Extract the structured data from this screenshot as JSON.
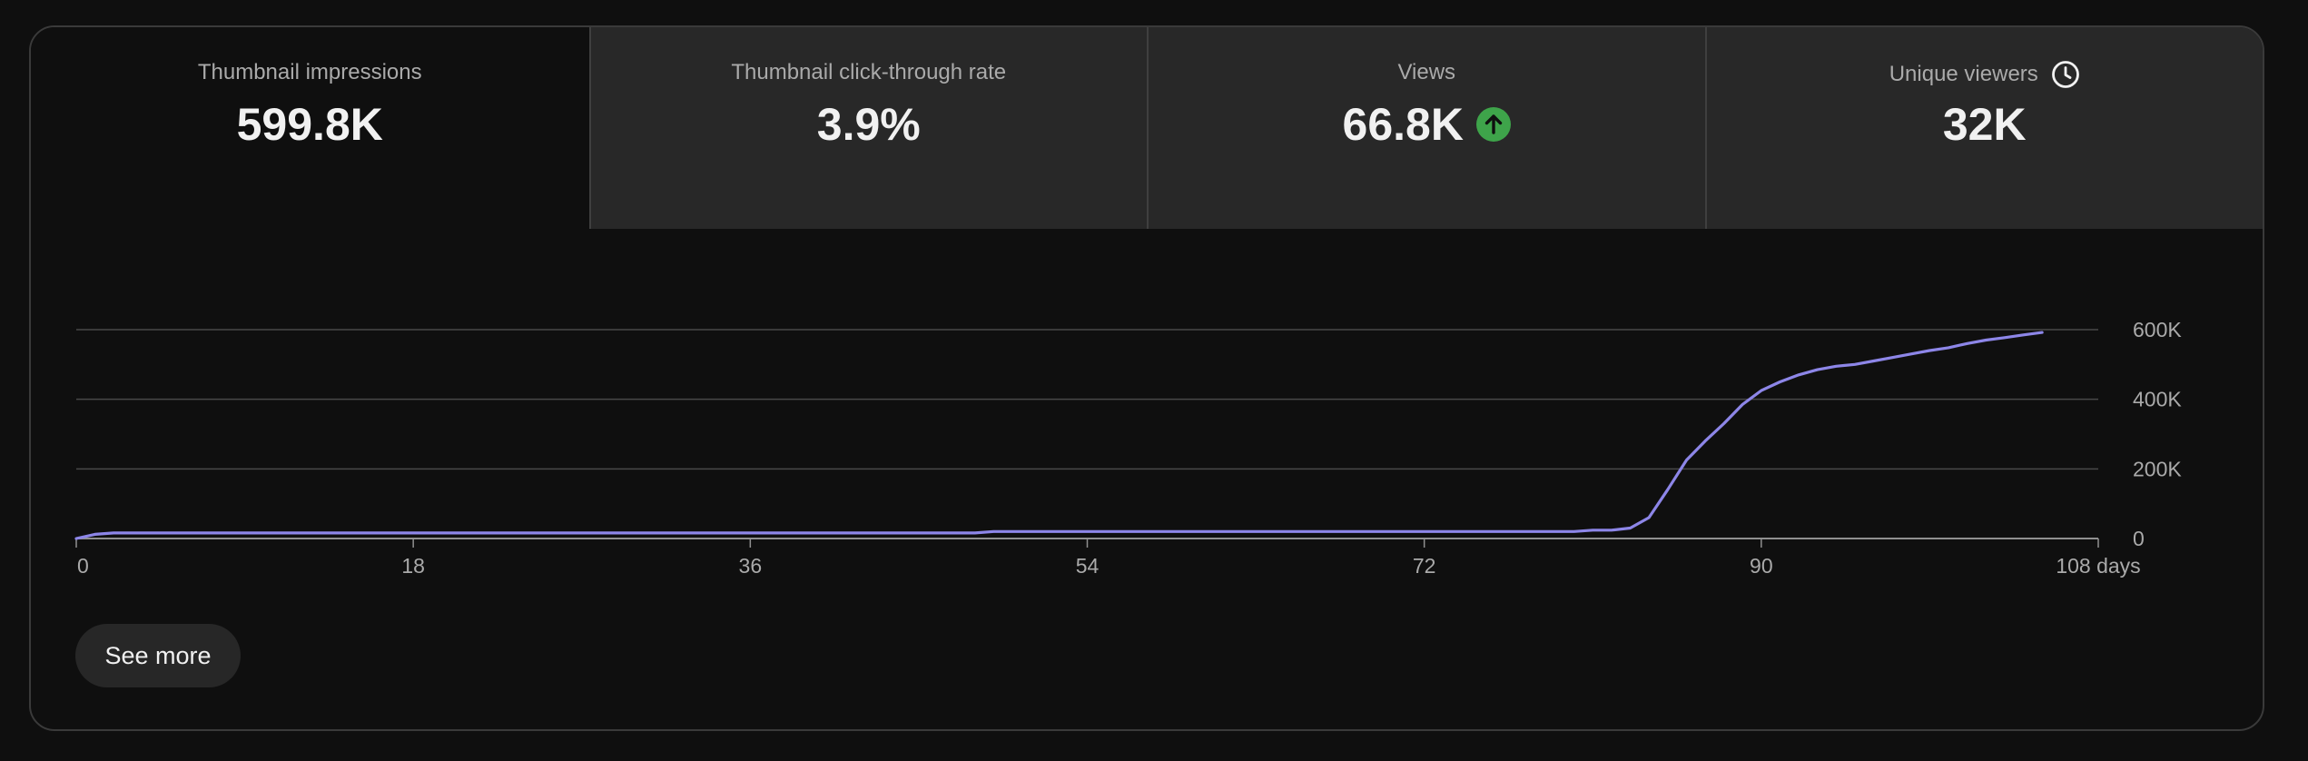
{
  "tabs": [
    {
      "label": "Thumbnail impressions",
      "value": "599.8K",
      "active": true
    },
    {
      "label": "Thumbnail click-through rate",
      "value": "3.9%",
      "active": false
    },
    {
      "label": "Views",
      "value": "66.8K",
      "active": false,
      "trend_icon": "arrow-up-circle-icon",
      "trend_color": "#3ea44a"
    },
    {
      "label": "Unique viewers",
      "value": "32K",
      "active": false,
      "info_icon": "clock-icon"
    }
  ],
  "see_more_label": "See more",
  "chart_data": {
    "type": "line",
    "title": "",
    "xlabel": "",
    "ylabel": "",
    "x_ticks": [
      "0",
      "18",
      "36",
      "54",
      "72",
      "90",
      "108 days"
    ],
    "y_ticks": [
      "0",
      "200K",
      "400K",
      "600K"
    ],
    "xlim": [
      0,
      108
    ],
    "ylim": [
      0,
      600000
    ],
    "grid": true,
    "line_color": "#8d86e8",
    "series": [
      {
        "x": [
          0,
          1,
          2,
          10,
          20,
          30,
          40,
          48,
          49,
          50,
          60,
          70,
          80,
          81,
          82,
          83,
          84,
          85,
          86,
          87,
          88,
          89,
          90,
          91,
          92,
          93,
          94,
          95,
          96,
          97,
          98,
          99,
          100,
          101,
          102,
          103,
          104,
          105
        ],
        "y": [
          0,
          12000,
          16000,
          16000,
          16000,
          16000,
          16000,
          16000,
          20000,
          20000,
          20000,
          20000,
          20000,
          24000,
          24000,
          30000,
          60000,
          140000,
          225000,
          280000,
          330000,
          385000,
          425000,
          450000,
          470000,
          485000,
          495000,
          500000,
          510000,
          520000,
          530000,
          540000,
          548000,
          560000,
          570000,
          577000,
          585000,
          592000
        ]
      }
    ]
  }
}
